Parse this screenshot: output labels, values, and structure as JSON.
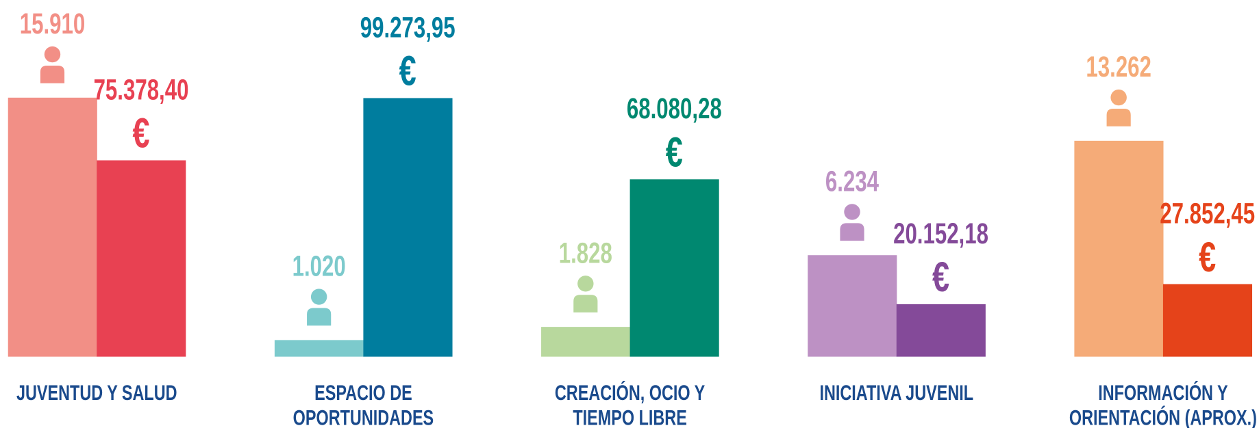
{
  "chart_data": {
    "type": "bar",
    "categories": [
      [
        "JUVENTUD Y SALUD"
      ],
      [
        "ESPACIO DE",
        "OPORTUNIDADES"
      ],
      [
        "CREACIÓN, OCIO Y",
        "TIEMPO LIBRE"
      ],
      [
        "INICIATIVA JUVENIL"
      ],
      [
        "INFORMACIÓN Y",
        "ORIENTACIÓN (APROX.)"
      ]
    ],
    "category_color": "#1a4a8c",
    "series": [
      {
        "values": [
          15910,
          1020,
          1828,
          6234,
          13262
        ],
        "value_labels": [
          "15.910",
          "1.020",
          "1.828",
          "6.234",
          "13.262"
        ],
        "colors": [
          "#f28f86",
          "#7ccacc",
          "#b8d89d",
          "#bd91c4",
          "#f5ab78"
        ]
      },
      {
        "axis": "y2",
        "symbol": "€",
        "values": [
          75378.4,
          99273.95,
          68080.28,
          20152.18,
          27852.45
        ],
        "value_labels": [
          "75.378,40",
          "99.273,95",
          "68.080,28",
          "20.152,18",
          "27.852,45"
        ],
        "colors": [
          "#e84152",
          "#007d9e",
          "#008870",
          "#844a99",
          "#e5431a"
        ]
      }
    ],
    "ylim": [
      0,
      16000
    ],
    "y2lim": [
      0,
      100000
    ]
  }
}
